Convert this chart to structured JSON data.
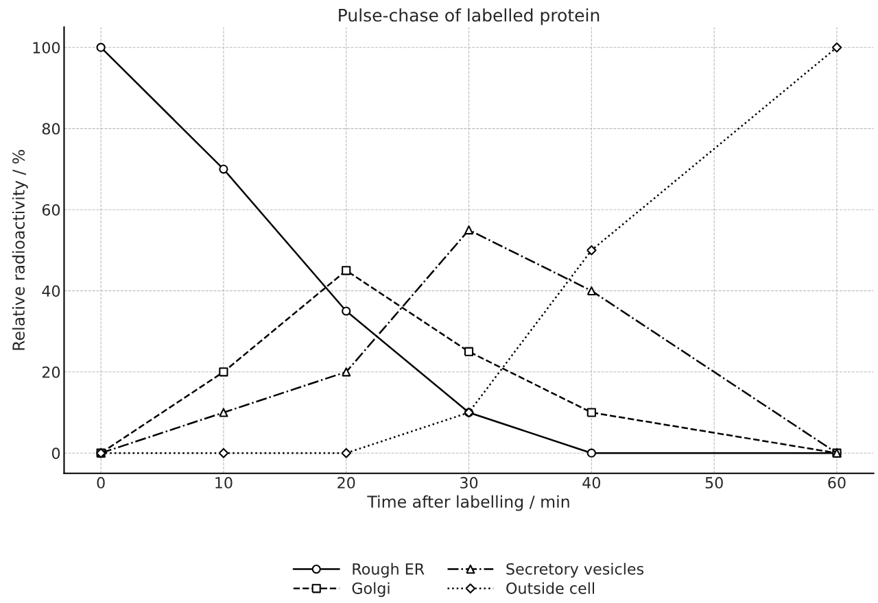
{
  "chart_data": {
    "type": "line",
    "title": "Pulse-chase of labelled protein",
    "xlabel": "Time after labelling / min",
    "ylabel": "Relative radioactivity / %",
    "x": [
      0,
      10,
      20,
      30,
      40,
      60
    ],
    "xlim": [
      -3,
      63
    ],
    "ylim": [
      -5,
      105
    ],
    "xticks": [
      0,
      10,
      20,
      30,
      40,
      50,
      60
    ],
    "yticks": [
      0,
      20,
      40,
      60,
      80,
      100
    ],
    "grid": true,
    "legend": "bottom",
    "series": [
      {
        "name": "Rough ER",
        "color": "#000000",
        "marker": "circle",
        "line_style": "solid",
        "values": [
          100,
          70,
          35,
          10,
          0,
          0
        ]
      },
      {
        "name": "Golgi",
        "color": "#000000",
        "marker": "square",
        "line_style": "dashed",
        "values": [
          0,
          20,
          45,
          25,
          10,
          0
        ]
      },
      {
        "name": "Secretory vesicles",
        "color": "#000000",
        "marker": "triangle",
        "line_style": "dashdot",
        "values": [
          0,
          10,
          20,
          55,
          40,
          0
        ]
      },
      {
        "name": "Outside cell",
        "color": "#000000",
        "marker": "diamond",
        "line_style": "dotted",
        "values": [
          0,
          0,
          0,
          10,
          50,
          100
        ]
      }
    ]
  }
}
